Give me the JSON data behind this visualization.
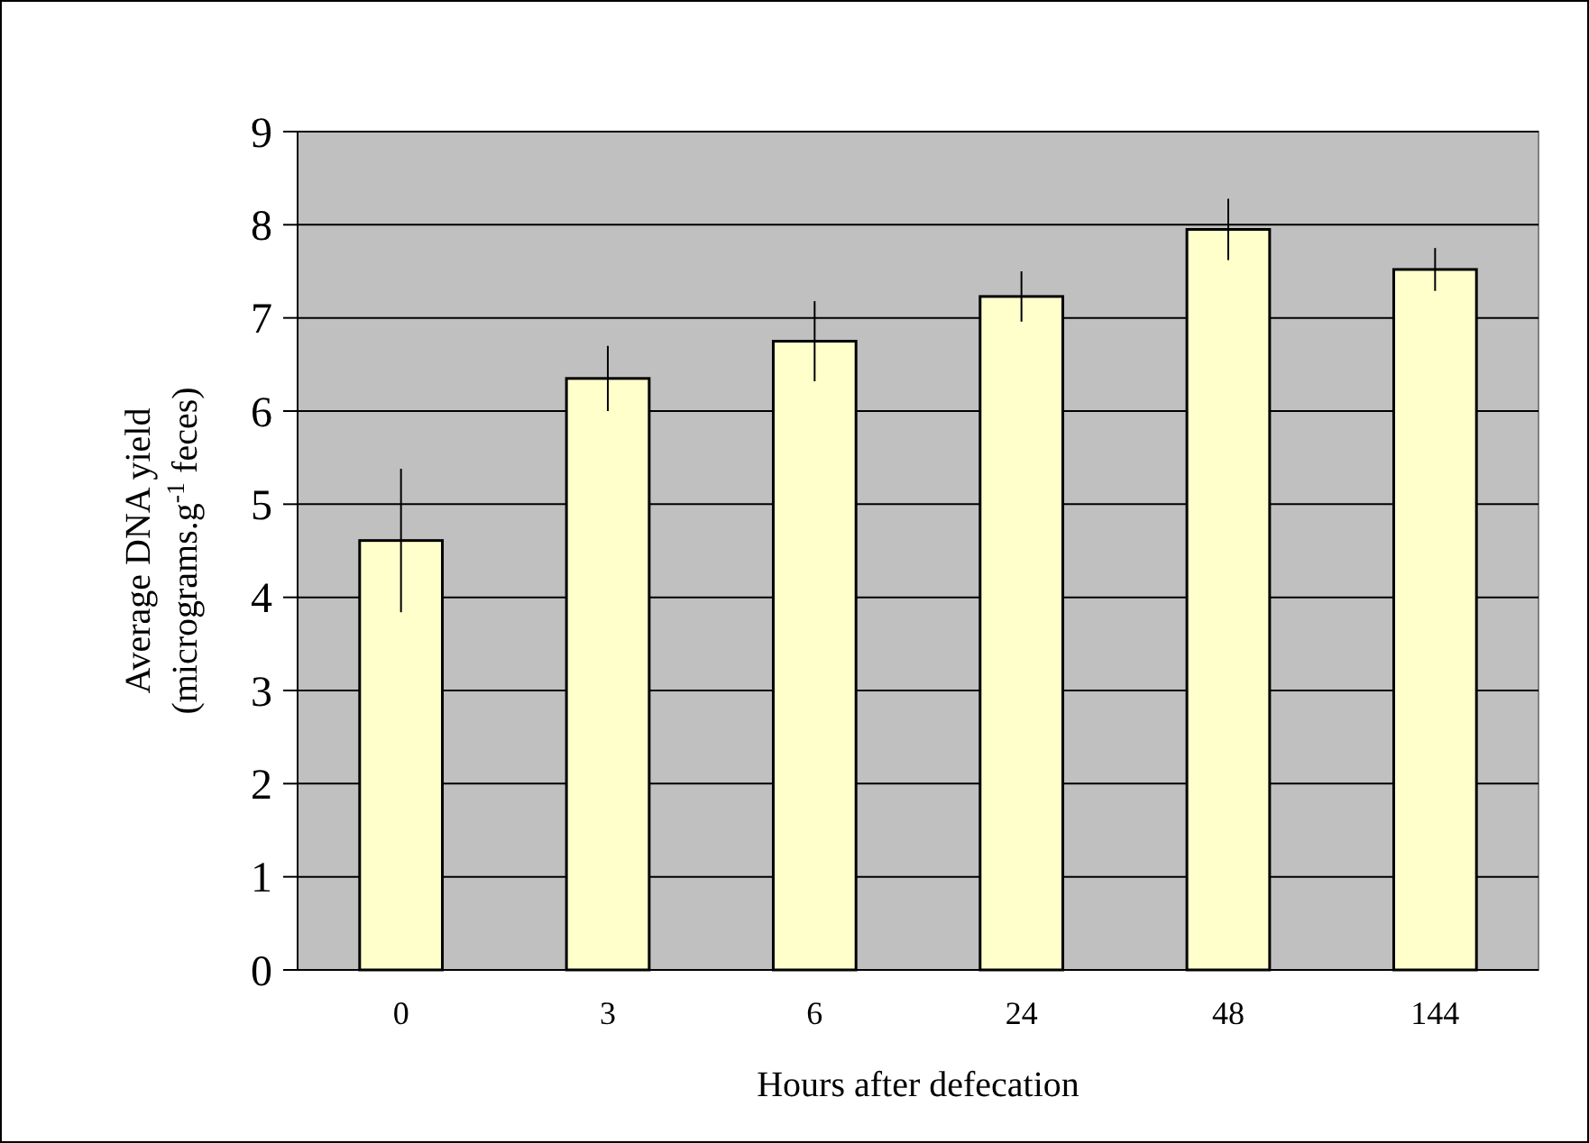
{
  "chart_data": {
    "type": "bar",
    "categories": [
      "0",
      "3",
      "6",
      "24",
      "48",
      "144"
    ],
    "values": [
      4.61,
      6.35,
      6.75,
      7.23,
      7.95,
      7.52
    ],
    "errors": [
      0.77,
      0.35,
      0.43,
      0.27,
      0.33,
      0.23
    ],
    "color": "#ffffcc",
    "xlabel": "Hours after defecation",
    "ylabel": "Average DNA yield\n(micrograms.g$^{-1}$ feces)",
    "ylim": [
      0,
      9
    ],
    "yticks": [
      0,
      1,
      2,
      3,
      4,
      5,
      6,
      7,
      8,
      9
    ],
    "grid": "y"
  }
}
